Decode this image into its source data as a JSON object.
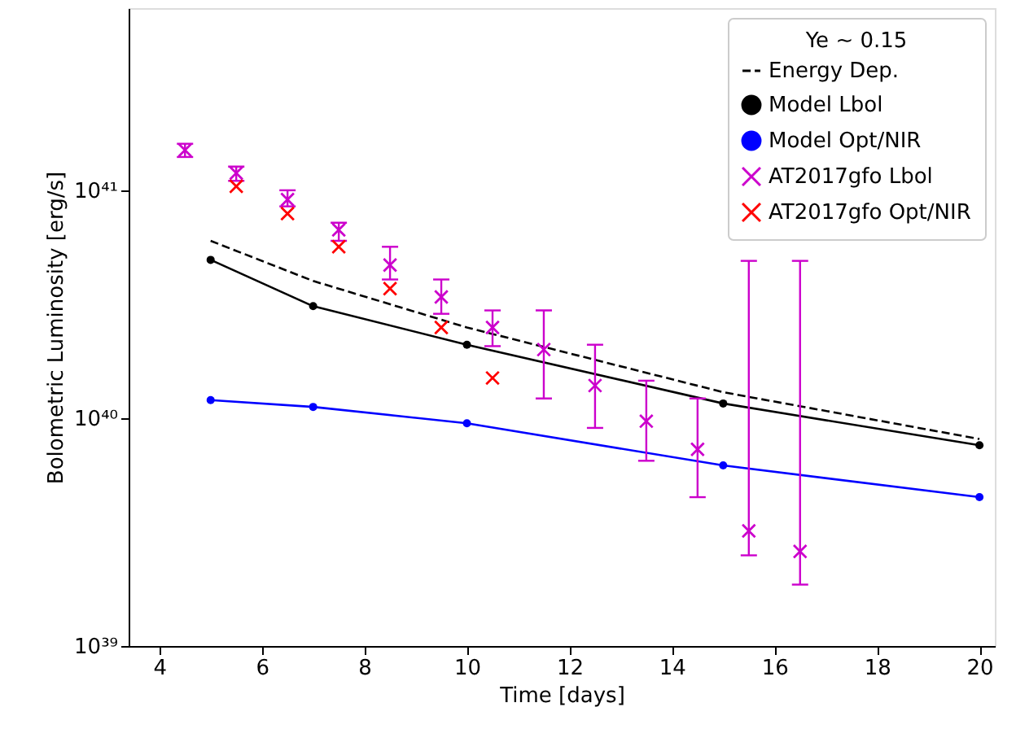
{
  "chart_data": {
    "type": "line",
    "xlabel": "Time [days]",
    "ylabel": "Bolometric Luminosity [erg/s]",
    "legend_title": "Ye ~ 0.15",
    "legend": "top right",
    "grid": false,
    "log": "y",
    "xlim": [
      3.4,
      20.3
    ],
    "xticks": [
      4,
      6,
      8,
      10,
      12,
      14,
      16,
      18,
      20
    ],
    "ylim": [
      1e+39,
      6.3e+41
    ],
    "yticks": [
      {
        "value": 1e+39,
        "label": "10³⁹"
      },
      {
        "value": 1e+40,
        "label": "10⁴⁰"
      },
      {
        "value": 1e+41,
        "label": "10⁴¹"
      }
    ],
    "series": [
      {
        "name": "Energy Dep.",
        "line_style": "dashed",
        "marker": "none",
        "color": "#000000",
        "x": [
          5,
          7,
          10,
          15,
          20
        ],
        "values": [
          6e+40,
          4e+40,
          2.5e+40,
          1.3e+40,
          8.1e+39
        ]
      },
      {
        "name": "Model Lbol",
        "line_style": "solid",
        "marker": "circle",
        "color": "#000000",
        "x": [
          5,
          7,
          10,
          15,
          20
        ],
        "values": [
          4.95e+40,
          3.1e+40,
          2.1e+40,
          1.16e+40,
          7.6e+39
        ]
      },
      {
        "name": "Model Opt/NIR",
        "line_style": "solid",
        "marker": "circle",
        "color": "#0000ff",
        "x": [
          5,
          7,
          10,
          15,
          20
        ],
        "values": [
          1.2e+40,
          1.12e+40,
          9.5e+39,
          6.2e+39,
          4.5e+39
        ]
      },
      {
        "name": "AT2017gfo Lbol",
        "type": "scatter",
        "marker": "cross",
        "color": "#cc00cc",
        "x": [
          4.5,
          5.5,
          6.5,
          7.5,
          8.5,
          9.5,
          10.5,
          11.5,
          12.5,
          13.5,
          14.5,
          15.5,
          16.5
        ],
        "values": [
          1.5e+41,
          1.19e+41,
          9.1e+40,
          6.7e+40,
          4.7e+40,
          3.4e+40,
          2.5e+40,
          2e+40,
          1.39e+40,
          9.7e+39,
          7.3e+39,
          3.2e+39,
          2.6e+39
        ],
        "errors": [
          [
            1.4e+41,
            1.6e+41
          ],
          [
            1.1e+41,
            1.27e+41
          ],
          [
            8.5e+40,
            1e+41
          ],
          [
            6e+40,
            7.2e+40
          ],
          [
            4.06e+40,
            5.65e+40
          ],
          [
            2.87e+40,
            4.06e+40
          ],
          [
            2.07e+40,
            2.97e+40
          ],
          [
            1.22e+40,
            2.97e+40
          ],
          [
            9.06e+39,
            2.1e+40
          ],
          [
            6.5e+39,
            1.46e+40
          ],
          [
            4.5e+39,
            1.22e+40
          ],
          [
            2.5e+39,
            4.9e+40
          ],
          [
            1.86e+39,
            4.9e+40
          ]
        ]
      },
      {
        "name": "AT2017gfo Opt/NIR",
        "type": "scatter",
        "marker": "cross",
        "color": "#ff0000",
        "x": [
          5.5,
          6.5,
          7.5,
          8.5,
          9.5,
          10.5
        ],
        "values": [
          1.04e+41,
          7.9e+40,
          5.65e+40,
          3.7e+40,
          2.5e+40,
          1.5e+40
        ]
      }
    ]
  }
}
